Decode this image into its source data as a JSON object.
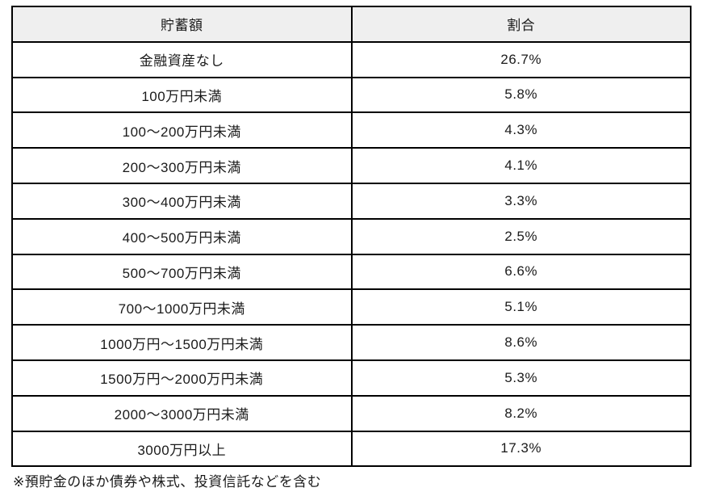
{
  "chart_data": {
    "type": "table",
    "title": "",
    "columns": [
      "貯蓄額",
      "割合"
    ],
    "rows": [
      {
        "label": "金融資産なし",
        "value": "26.7%"
      },
      {
        "label": "100万円未満",
        "value": "5.8%"
      },
      {
        "label": "100〜200万円未満",
        "value": "4.3%"
      },
      {
        "label": "200〜300万円未満",
        "value": "4.1%"
      },
      {
        "label": "300〜400万円未満",
        "value": "3.3%"
      },
      {
        "label": "400〜500万円未満",
        "value": "2.5%"
      },
      {
        "label": "500〜700万円未満",
        "value": "6.6%"
      },
      {
        "label": "700〜1000万円未満",
        "value": "5.1%"
      },
      {
        "label": "1000万円〜1500万円未満",
        "value": "8.6%"
      },
      {
        "label": "1500万円〜2000万円未満",
        "value": "5.3%"
      },
      {
        "label": "2000〜3000万円未満",
        "value": "8.2%"
      },
      {
        "label": "3000万円以上",
        "value": "17.3%"
      }
    ],
    "footnote": "※預貯金のほか債券や株式、投資信託などを含む"
  },
  "table": {
    "header_savings": "貯蓄額",
    "header_ratio": "割合"
  },
  "colors": {
    "header_bg": "#efefef",
    "border": "#000000",
    "text": "#1a1a1a",
    "background": "#ffffff"
  }
}
